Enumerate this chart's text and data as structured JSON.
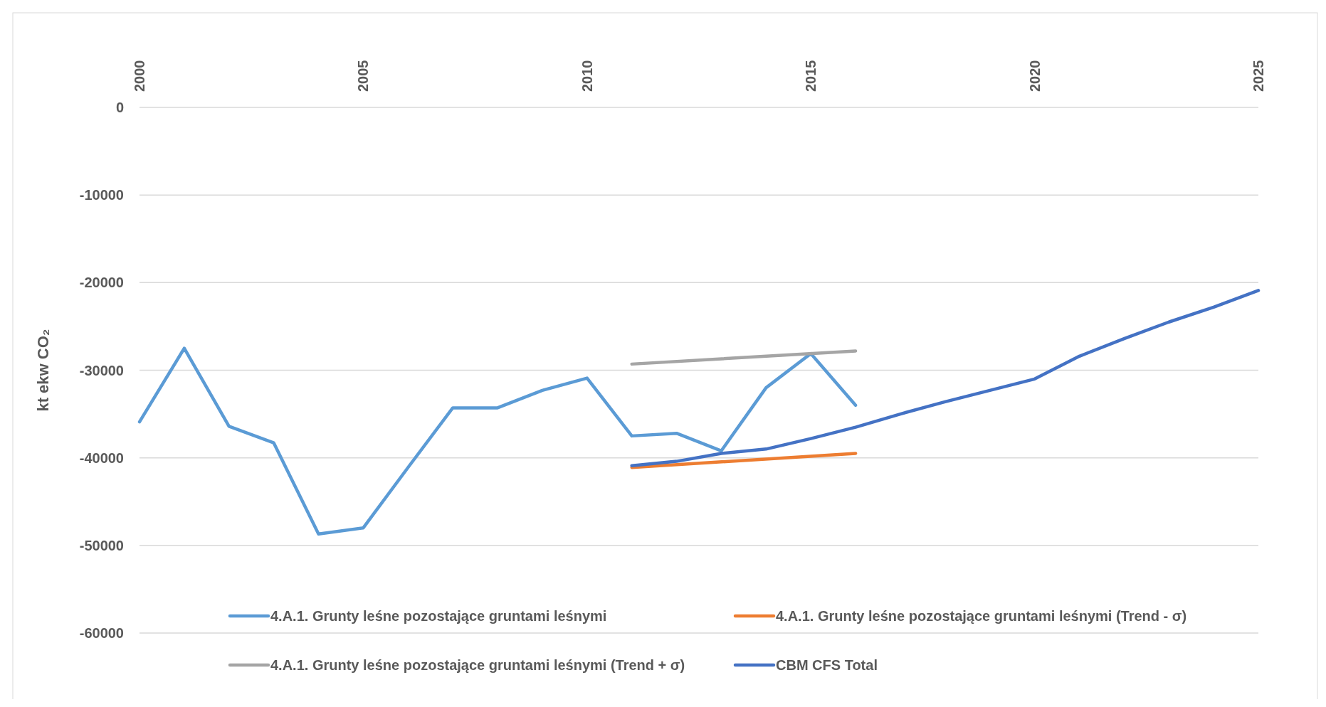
{
  "chart_data": {
    "type": "line",
    "ylabel": "kt ekw CO₂",
    "xlim": [
      2000,
      2025
    ],
    "xticks": [
      2000,
      2005,
      2010,
      2015,
      2020,
      2025
    ],
    "ylim": [
      -60000,
      0
    ],
    "yticks": [
      -60000,
      -50000,
      -40000,
      -30000,
      -20000,
      -10000,
      0
    ],
    "grid": "y",
    "legend": "bottom",
    "marker": "none",
    "line_style": "solid",
    "series": [
      {
        "name": "4.A.1. Grunty leśne pozostające gruntami leśnymi",
        "color": "#5b9bd5",
        "x": [
          2000,
          2001,
          2002,
          2003,
          2004,
          2005,
          2006,
          2007,
          2008,
          2009,
          2010,
          2011,
          2012,
          2013,
          2014,
          2015,
          2016
        ],
        "values": [
          -35900,
          -27500,
          -36400,
          -38300,
          -48700,
          -48000,
          -41100,
          -34300,
          -34300,
          -32300,
          -30900,
          -37500,
          -37200,
          -39200,
          -32000,
          -28100,
          -34000
        ]
      },
      {
        "name": "4.A.1. Grunty leśne pozostające gruntami leśnymi (Trend - σ)",
        "color": "#ed7d31",
        "x": [
          2011,
          2016
        ],
        "values": [
          -41100,
          -39500
        ]
      },
      {
        "name": "4.A.1. Grunty leśne pozostające gruntami leśnymi (Trend + σ)",
        "color": "#a5a5a5",
        "x": [
          2011,
          2016
        ],
        "values": [
          -29300,
          -27800
        ]
      },
      {
        "name": "CBM CFS Total",
        "color": "#4472c4",
        "x": [
          2011,
          2012,
          2013,
          2014,
          2015,
          2016,
          2017,
          2018,
          2019,
          2020,
          2021,
          2022,
          2023,
          2024,
          2025
        ],
        "values": [
          -40900,
          -40400,
          -39500,
          -39000,
          -37800,
          -36500,
          -35000,
          -33600,
          -32300,
          -31000,
          -28400,
          -26400,
          -24500,
          -22800,
          -20900
        ]
      }
    ]
  }
}
